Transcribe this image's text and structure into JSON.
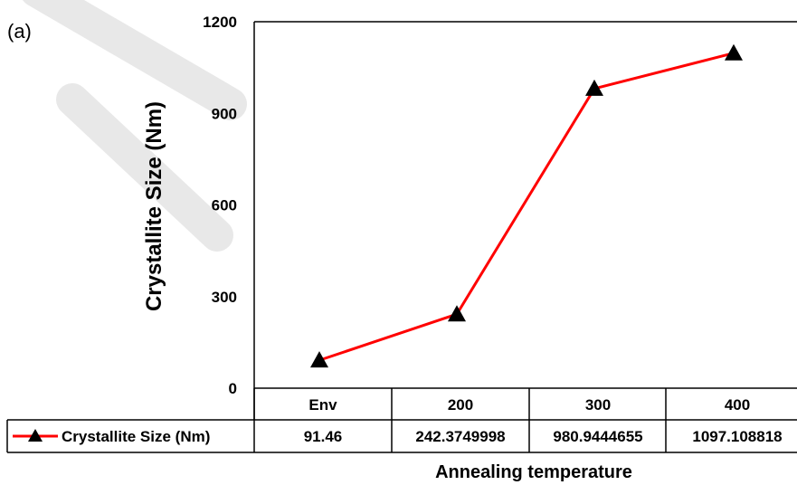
{
  "panel_label": "(a)",
  "chart_data": {
    "type": "line",
    "categories": [
      "Env",
      "200",
      "300",
      "400"
    ],
    "series": [
      {
        "name": "Crystallite Size (Nm)",
        "values": [
          91.46,
          242.3749998,
          980.9444655,
          1097.108818
        ],
        "value_labels": [
          "91.46",
          "242.3749998",
          "980.9444655",
          "1097.108818"
        ],
        "color": "#ff0000",
        "marker": "triangle",
        "marker_color": "#000000"
      }
    ],
    "ylabel": "Crystallite Size (Nm)",
    "xlabel": "Annealing temperature",
    "ylim": [
      0,
      1200
    ],
    "yticks": [
      "0",
      "300",
      "600",
      "900",
      "1200"
    ],
    "ytick_values": [
      0,
      300,
      600,
      900,
      1200
    ],
    "grid": false,
    "data_table": true
  },
  "watermark_color": "#e6e6e6"
}
